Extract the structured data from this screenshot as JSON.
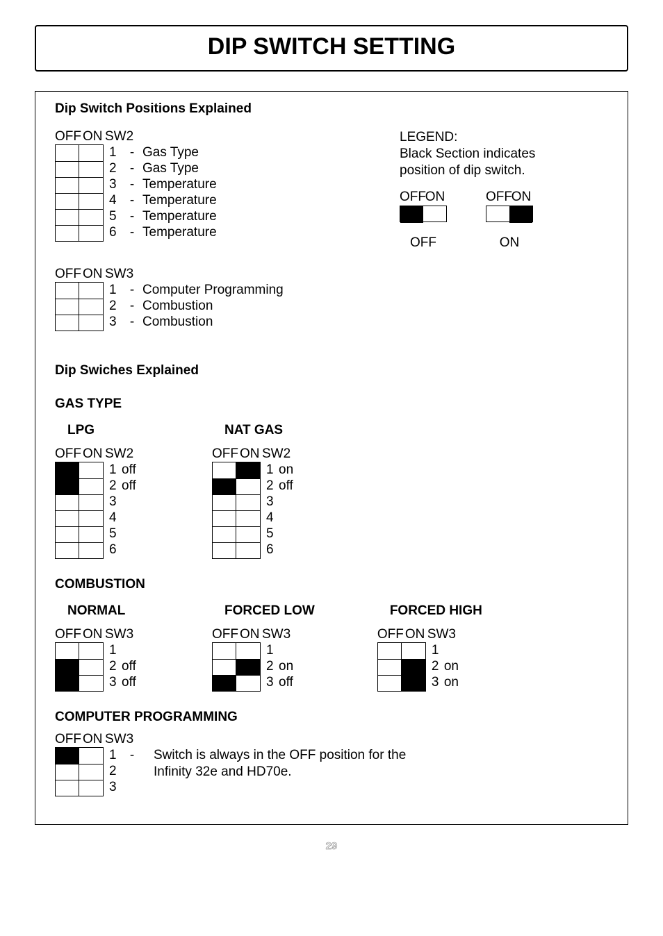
{
  "page_title": "DIP SWITCH SETTING",
  "page_number": "29",
  "section1": {
    "heading": "Dip Switch Positions Explained",
    "sw2": {
      "header_off": "OFF",
      "header_on": "ON",
      "header_name": "SW2",
      "rows": [
        {
          "num": "1",
          "dash": "-",
          "desc": "Gas Type",
          "off_fill": false,
          "on_fill": false
        },
        {
          "num": "2",
          "dash": "-",
          "desc": "Gas Type",
          "off_fill": false,
          "on_fill": false
        },
        {
          "num": "3",
          "dash": "-",
          "desc": "Temperature",
          "off_fill": false,
          "on_fill": false
        },
        {
          "num": "4",
          "dash": "-",
          "desc": "Temperature",
          "off_fill": false,
          "on_fill": false
        },
        {
          "num": "5",
          "dash": "-",
          "desc": "Temperature",
          "off_fill": false,
          "on_fill": false
        },
        {
          "num": "6",
          "dash": "-",
          "desc": "Temperature",
          "off_fill": false,
          "on_fill": false
        }
      ]
    },
    "sw3": {
      "header_off": "OFF",
      "header_on": "ON",
      "header_name": "SW3",
      "rows": [
        {
          "num": "1",
          "dash": "-",
          "desc": "Computer Programming",
          "off_fill": false,
          "on_fill": false
        },
        {
          "num": "2",
          "dash": "-",
          "desc": "Combustion",
          "off_fill": false,
          "on_fill": false
        },
        {
          "num": "3",
          "dash": "-",
          "desc": "Combustion",
          "off_fill": false,
          "on_fill": false
        }
      ]
    },
    "legend": {
      "title": "LEGEND:",
      "line1": "Black Section indicates",
      "line2": "position of dip switch.",
      "dips": [
        {
          "off": "OFF",
          "on": "ON",
          "left_fill": true,
          "right_fill": false,
          "label": "OFF"
        },
        {
          "off": "OFF",
          "on": "ON",
          "left_fill": false,
          "right_fill": true,
          "label": "ON"
        }
      ]
    }
  },
  "section2": {
    "heading": "Dip Swiches Explained",
    "gas": {
      "heading": "GAS TYPE",
      "cols": [
        {
          "title": "LPG",
          "header_off": "OFF",
          "header_on": "ON",
          "header_name": "SW2",
          "rows": [
            {
              "num": "1",
              "state": "off",
              "off_fill": true,
              "on_fill": false
            },
            {
              "num": "2",
              "state": "off",
              "off_fill": true,
              "on_fill": false
            },
            {
              "num": "3",
              "state": "",
              "off_fill": false,
              "on_fill": false
            },
            {
              "num": "4",
              "state": "",
              "off_fill": false,
              "on_fill": false
            },
            {
              "num": "5",
              "state": "",
              "off_fill": false,
              "on_fill": false
            },
            {
              "num": "6",
              "state": "",
              "off_fill": false,
              "on_fill": false
            }
          ]
        },
        {
          "title": "NAT GAS",
          "header_off": "OFF",
          "header_on": "ON",
          "header_name": "SW2",
          "rows": [
            {
              "num": "1",
              "state": "on",
              "off_fill": false,
              "on_fill": true
            },
            {
              "num": "2",
              "state": "off",
              "off_fill": true,
              "on_fill": false
            },
            {
              "num": "3",
              "state": "",
              "off_fill": false,
              "on_fill": false
            },
            {
              "num": "4",
              "state": "",
              "off_fill": false,
              "on_fill": false
            },
            {
              "num": "5",
              "state": "",
              "off_fill": false,
              "on_fill": false
            },
            {
              "num": "6",
              "state": "",
              "off_fill": false,
              "on_fill": false
            }
          ]
        }
      ]
    },
    "combustion": {
      "heading": "COMBUSTION",
      "cols": [
        {
          "title": "NORMAL",
          "header_off": "OFF",
          "header_on": "ON",
          "header_name": "SW3",
          "rows": [
            {
              "num": "1",
              "state": "",
              "off_fill": false,
              "on_fill": false
            },
            {
              "num": "2",
              "state": "off",
              "off_fill": true,
              "on_fill": false
            },
            {
              "num": "3",
              "state": "off",
              "off_fill": true,
              "on_fill": false
            }
          ]
        },
        {
          "title": "FORCED LOW",
          "header_off": "OFF",
          "header_on": "ON",
          "header_name": "SW3",
          "rows": [
            {
              "num": "1",
              "state": "",
              "off_fill": false,
              "on_fill": false
            },
            {
              "num": "2",
              "state": "on",
              "off_fill": false,
              "on_fill": true
            },
            {
              "num": "3",
              "state": "off",
              "off_fill": true,
              "on_fill": false
            }
          ]
        },
        {
          "title": "FORCED HIGH",
          "header_off": "OFF",
          "header_on": "ON",
          "header_name": "SW3",
          "rows": [
            {
              "num": "1",
              "state": "",
              "off_fill": false,
              "on_fill": false
            },
            {
              "num": "2",
              "state": "on",
              "off_fill": false,
              "on_fill": true
            },
            {
              "num": "3",
              "state": "on",
              "off_fill": false,
              "on_fill": true
            }
          ]
        }
      ]
    },
    "computer": {
      "heading": "COMPUTER PROGRAMMING",
      "header_off": "OFF",
      "header_on": "ON",
      "header_name": "SW3",
      "rows": [
        {
          "num": "1",
          "dash": "-",
          "off_fill": true,
          "on_fill": false
        },
        {
          "num": "2",
          "dash": "",
          "off_fill": false,
          "on_fill": false
        },
        {
          "num": "3",
          "dash": "",
          "off_fill": false,
          "on_fill": false
        }
      ],
      "note_line1": "Switch is always in the OFF position for the",
      "note_line2": "Infinity 32e and HD70e."
    }
  }
}
